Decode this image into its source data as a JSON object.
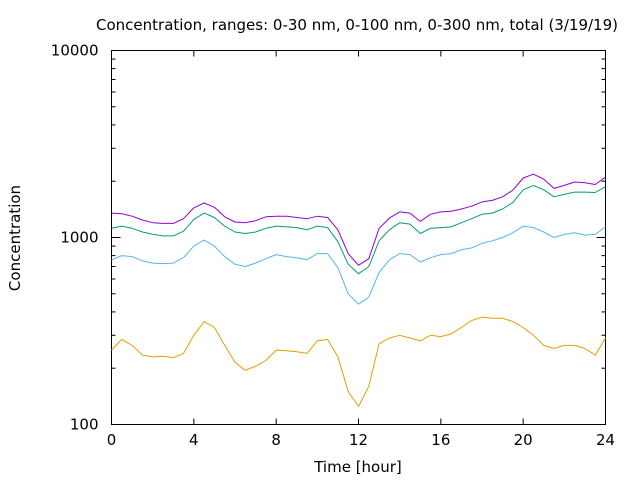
{
  "chart_data": {
    "type": "line",
    "title": "Concentration, ranges: 0-30 nm, 0-100 nm, 0-300 nm, total (3/19/19)",
    "xlabel": "Time [hour]",
    "ylabel": "Concentration",
    "xlim": [
      0,
      24
    ],
    "ylim": [
      100,
      10000
    ],
    "yscale": "log",
    "grid": false,
    "legend": "none",
    "x_ticks": [
      {
        "value": 0,
        "label": "0"
      },
      {
        "value": 4,
        "label": "4"
      },
      {
        "value": 8,
        "label": "8"
      },
      {
        "value": 12,
        "label": "12"
      },
      {
        "value": 16,
        "label": "16"
      },
      {
        "value": 20,
        "label": "20"
      },
      {
        "value": 24,
        "label": "24"
      }
    ],
    "y_ticks": [
      {
        "value": 100,
        "label": "100"
      },
      {
        "value": 1000,
        "label": "1000"
      },
      {
        "value": 10000,
        "label": "10000"
      }
    ],
    "x": [
      0,
      0.5,
      1,
      1.5,
      2,
      2.5,
      3,
      3.5,
      4,
      4.5,
      5,
      5.5,
      6,
      6.5,
      7,
      7.5,
      8,
      8.5,
      9,
      9.5,
      10,
      10.5,
      11,
      11.5,
      12,
      12.5,
      13,
      13.5,
      14,
      14.5,
      15,
      15.5,
      16,
      16.5,
      17,
      17.5,
      18,
      18.5,
      19,
      19.5,
      20,
      20.5,
      21,
      21.5,
      22,
      22.5,
      23,
      23.5,
      24
    ],
    "series": [
      {
        "color": "#e69f00",
        "values": [
          250,
          285,
          265,
          235,
          230,
          232,
          228,
          240,
          300,
          355,
          330,
          265,
          215,
          195,
          205,
          220,
          250,
          248,
          245,
          240,
          280,
          285,
          230,
          150,
          125,
          160,
          270,
          290,
          300,
          290,
          280,
          300,
          295,
          305,
          330,
          360,
          375,
          370,
          370,
          355,
          330,
          300,
          265,
          255,
          265,
          265,
          255,
          235,
          290
        ]
      },
      {
        "color": "#56b4e9",
        "values": [
          760,
          800,
          790,
          750,
          730,
          725,
          730,
          780,
          900,
          970,
          900,
          790,
          720,
          700,
          730,
          770,
          810,
          790,
          780,
          760,
          820,
          820,
          690,
          500,
          440,
          480,
          650,
          760,
          820,
          810,
          740,
          780,
          810,
          820,
          860,
          880,
          930,
          960,
          1000,
          1060,
          1150,
          1130,
          1070,
          1000,
          1040,
          1060,
          1030,
          1040,
          1140
        ]
      },
      {
        "color": "#009e73",
        "values": [
          1120,
          1150,
          1120,
          1070,
          1040,
          1020,
          1020,
          1080,
          1250,
          1350,
          1280,
          1150,
          1070,
          1050,
          1070,
          1120,
          1150,
          1140,
          1130,
          1100,
          1150,
          1130,
          950,
          720,
          640,
          700,
          960,
          1100,
          1200,
          1180,
          1050,
          1120,
          1130,
          1140,
          1200,
          1260,
          1330,
          1350,
          1420,
          1540,
          1800,
          1900,
          1800,
          1650,
          1700,
          1750,
          1750,
          1740,
          1870
        ]
      },
      {
        "color": "#9400d3",
        "values": [
          1350,
          1340,
          1300,
          1240,
          1200,
          1190,
          1190,
          1260,
          1440,
          1530,
          1450,
          1290,
          1210,
          1200,
          1230,
          1290,
          1300,
          1300,
          1280,
          1260,
          1300,
          1280,
          1100,
          820,
          710,
          770,
          1120,
          1270,
          1370,
          1350,
          1220,
          1330,
          1370,
          1380,
          1420,
          1470,
          1550,
          1580,
          1650,
          1790,
          2080,
          2180,
          2050,
          1830,
          1900,
          1980,
          1960,
          1920,
          2100
        ]
      }
    ]
  }
}
